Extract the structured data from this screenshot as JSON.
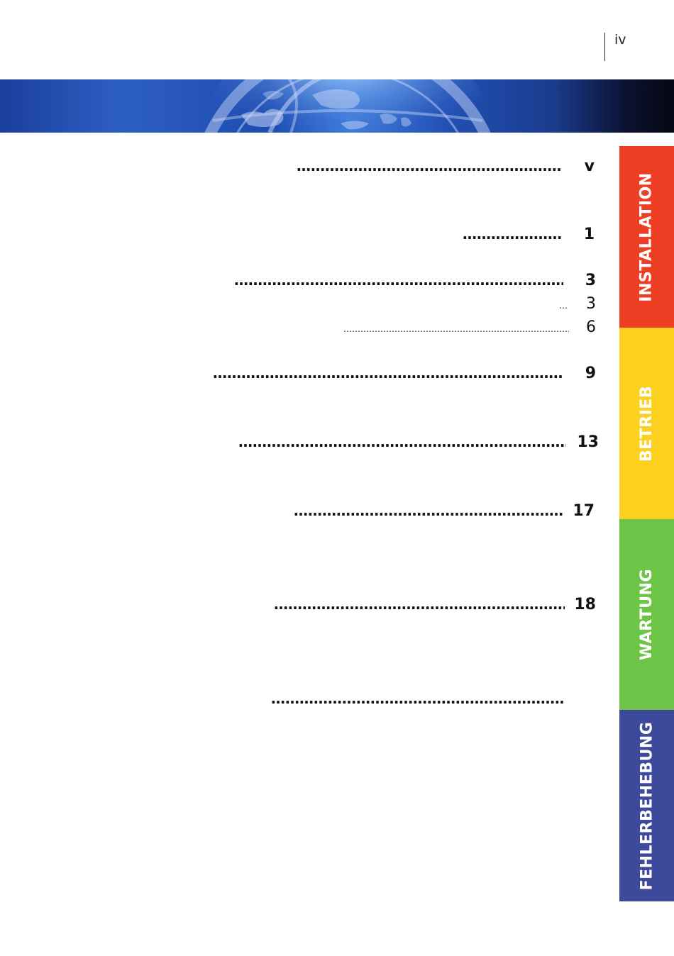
{
  "page_number": "iv",
  "toc": [
    {
      "number": "v",
      "style": "bold"
    },
    {
      "number": "1",
      "style": "bold"
    },
    {
      "number": "3",
      "style": "bold"
    },
    {
      "number": "3",
      "style": "light"
    },
    {
      "number": "6",
      "style": "light"
    },
    {
      "number": "9",
      "style": "bold"
    },
    {
      "number": "13",
      "style": "bold"
    },
    {
      "number": "17",
      "style": "bold"
    },
    {
      "number": "18",
      "style": "bold"
    },
    {
      "number": "",
      "style": "bold"
    }
  ],
  "tabs": [
    {
      "label": "INSTALLATION",
      "color": "#ee3f24"
    },
    {
      "label": "BETRIEB",
      "color": "#fcd01e"
    },
    {
      "label": "WARTUNG",
      "color": "#6cc546"
    },
    {
      "label": "FEHLERBEHEBUNG",
      "color": "#3d4a9c"
    }
  ],
  "banner": {
    "icon": "globe-graphic"
  }
}
